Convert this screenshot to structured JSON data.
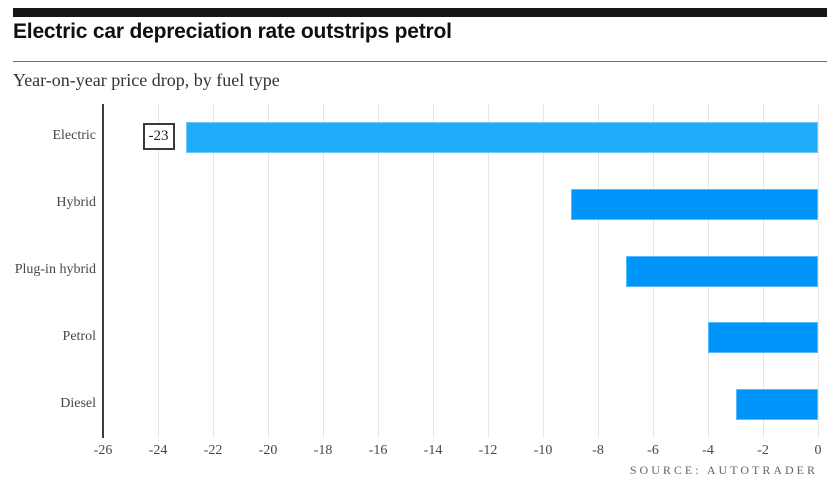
{
  "header": {
    "title": "Electric car depreciation rate outstrips petrol",
    "subtitle": "Year-on-year price drop, by fuel type"
  },
  "chart_data": {
    "type": "bar",
    "orientation": "horizontal",
    "title": "Electric car depreciation rate outstrips petrol",
    "subtitle": "Year-on-year price drop, by fuel type",
    "categories": [
      "Electric",
      "Hybrid",
      "Plug-in hybrid",
      "Petrol",
      "Diesel"
    ],
    "values": [
      -23,
      -9,
      -7,
      -4,
      -3
    ],
    "value_labels": [
      {
        "category": "Electric",
        "text": "-23"
      }
    ],
    "xlim": [
      -26,
      0
    ],
    "tick_values": [
      -26,
      -24,
      -22,
      -20,
      -18,
      -16,
      -14,
      -12,
      -10,
      -8,
      -6,
      -4,
      -2,
      0
    ],
    "tick_labels": [
      "-26",
      "-24",
      "-22",
      "-20",
      "-18",
      "-16",
      "-14",
      "-12",
      "-10",
      "-8",
      "-6",
      "-4",
      "-2",
      "0"
    ],
    "grid": true,
    "legend": "none",
    "colors": {
      "highlight_bar": "#1fadfb",
      "default_bar": "#0095fa",
      "gridline": "#e6e6e6",
      "axis_line": "#3d3d3d",
      "accent_bar": "#161616"
    }
  },
  "footer": {
    "source": "SOURCE: AUTOTRADER"
  }
}
